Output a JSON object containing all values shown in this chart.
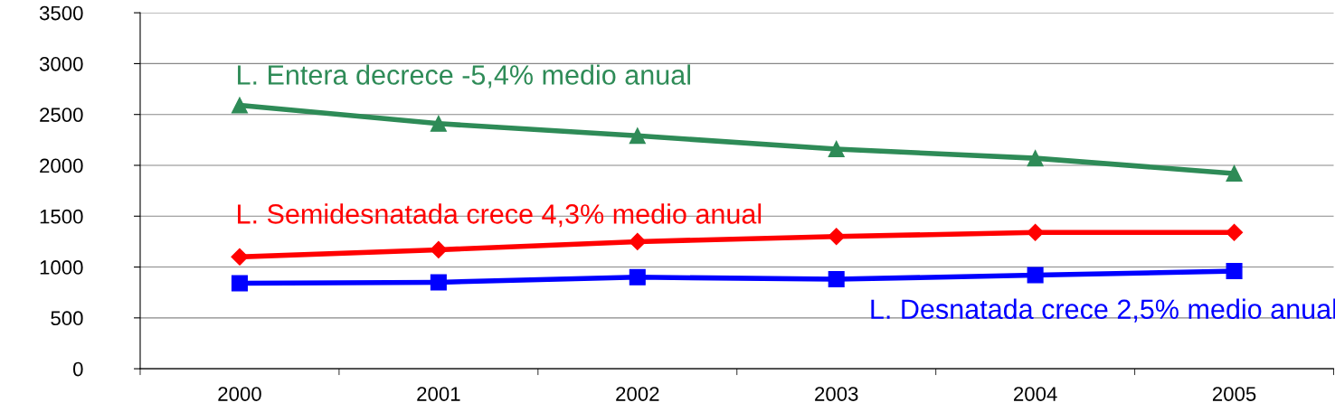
{
  "chart_data": {
    "type": "line",
    "categories": [
      "2000",
      "2001",
      "2002",
      "2003",
      "2004",
      "2005"
    ],
    "series": [
      {
        "name": "L. Entera decrece -5,4% medio anual",
        "color": "#2e8b57",
        "marker": "triangle",
        "values": [
          2590,
          2410,
          2290,
          2160,
          2070,
          1920
        ]
      },
      {
        "name": "L. Semidesnatada crece 4,3% medio anual",
        "color": "#ff0000",
        "marker": "diamond",
        "values": [
          1100,
          1170,
          1250,
          1300,
          1340,
          1340
        ]
      },
      {
        "name": "L. Desnatada crece 2,5% medio anual",
        "color": "#0000ff",
        "marker": "square",
        "values": [
          840,
          850,
          900,
          880,
          920,
          960
        ]
      }
    ],
    "ylim": [
      0,
      3500
    ],
    "yticks": [
      0,
      500,
      1000,
      1500,
      2000,
      2500,
      3000,
      3500
    ],
    "grid": "y",
    "legend": false,
    "line_style": "solid"
  }
}
